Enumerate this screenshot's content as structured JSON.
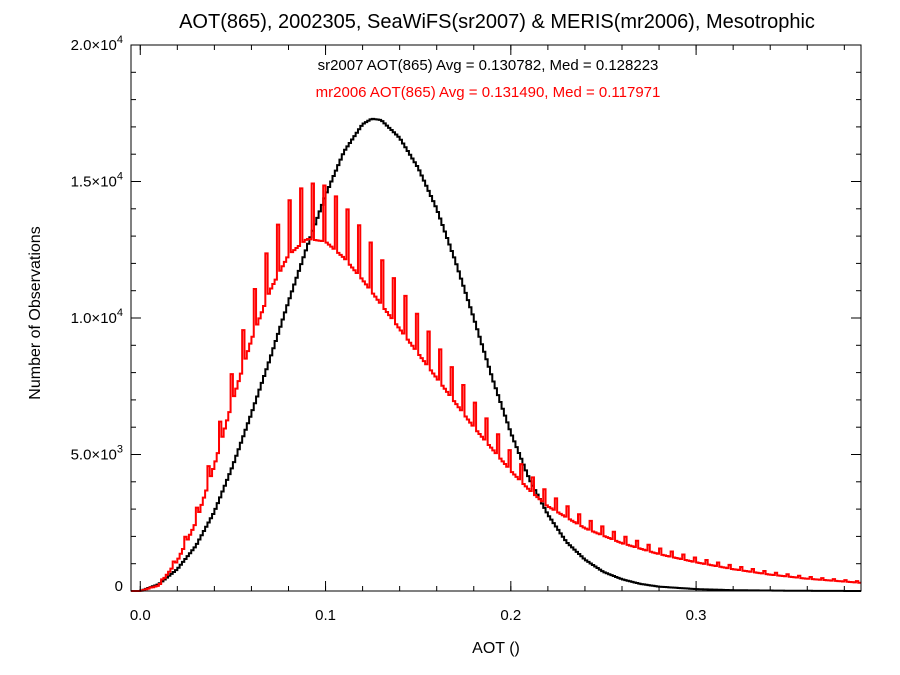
{
  "chart_data": {
    "type": "histogram",
    "title": "AOT(865), 2002305, SeaWiFS(sr2007) & MERIS(mr2006), Mesotrophic",
    "xlabel": "AOT ()",
    "ylabel": "Number of Observations",
    "xlim": [
      -0.005,
      0.389
    ],
    "ylim": [
      0,
      20000
    ],
    "x_ticks": [
      {
        "value": 0.0,
        "label": "0.0"
      },
      {
        "value": 0.1,
        "label": "0.1"
      },
      {
        "value": 0.2,
        "label": "0.2"
      },
      {
        "value": 0.3,
        "label": "0.3"
      }
    ],
    "y_ticks": [
      {
        "value": 0,
        "mantissa": "0",
        "exponent": ""
      },
      {
        "value": 5000,
        "mantissa": "5.0×10",
        "exponent": "3"
      },
      {
        "value": 10000,
        "mantissa": "1.0×10",
        "exponent": "4"
      },
      {
        "value": 15000,
        "mantissa": "1.5×10",
        "exponent": "4"
      },
      {
        "value": 20000,
        "mantissa": "2.0×10",
        "exponent": "4"
      }
    ],
    "annotations": [
      {
        "text": "sr2007 AOT(865) Avg = 0.130782, Med = 0.128223",
        "color": "#000000"
      },
      {
        "text": "mr2006 AOT(865) Avg = 0.131490, Med = 0.117971",
        "color": "#ff0000"
      }
    ],
    "series": [
      {
        "color": "#000000",
        "points": [
          [
            0.0,
            0
          ],
          [
            0.01,
            250
          ],
          [
            0.02,
            800
          ],
          [
            0.03,
            1650
          ],
          [
            0.04,
            2900
          ],
          [
            0.05,
            4600
          ],
          [
            0.06,
            6500
          ],
          [
            0.07,
            8500
          ],
          [
            0.08,
            10600
          ],
          [
            0.09,
            12600
          ],
          [
            0.1,
            14500
          ],
          [
            0.11,
            16100
          ],
          [
            0.12,
            17100
          ],
          [
            0.125,
            17300
          ],
          [
            0.13,
            17250
          ],
          [
            0.14,
            16600
          ],
          [
            0.15,
            15500
          ],
          [
            0.16,
            14000
          ],
          [
            0.17,
            12100
          ],
          [
            0.18,
            10000
          ],
          [
            0.19,
            7800
          ],
          [
            0.2,
            5800
          ],
          [
            0.21,
            4100
          ],
          [
            0.22,
            2800
          ],
          [
            0.23,
            1800
          ],
          [
            0.24,
            1150
          ],
          [
            0.25,
            700
          ],
          [
            0.26,
            430
          ],
          [
            0.27,
            260
          ],
          [
            0.28,
            160
          ],
          [
            0.3,
            70
          ],
          [
            0.32,
            30
          ],
          [
            0.35,
            10
          ],
          [
            0.389,
            0
          ]
        ]
      },
      {
        "color": "#ff0000",
        "points": [
          [
            0.0,
            0
          ],
          [
            0.01,
            200
          ],
          [
            0.02,
            1100
          ],
          [
            0.03,
            2500
          ],
          [
            0.04,
            4600
          ],
          [
            0.05,
            7000
          ],
          [
            0.06,
            9200
          ],
          [
            0.07,
            11000
          ],
          [
            0.08,
            12300
          ],
          [
            0.09,
            12900
          ],
          [
            0.1,
            12800
          ],
          [
            0.11,
            12200
          ],
          [
            0.12,
            11400
          ],
          [
            0.13,
            10500
          ],
          [
            0.14,
            9600
          ],
          [
            0.15,
            8700
          ],
          [
            0.16,
            7800
          ],
          [
            0.17,
            6900
          ],
          [
            0.18,
            6000
          ],
          [
            0.19,
            5200
          ],
          [
            0.2,
            4400
          ],
          [
            0.21,
            3700
          ],
          [
            0.22,
            3100
          ],
          [
            0.24,
            2300
          ],
          [
            0.26,
            1750
          ],
          [
            0.28,
            1350
          ],
          [
            0.3,
            1050
          ],
          [
            0.32,
            800
          ],
          [
            0.34,
            600
          ],
          [
            0.36,
            450
          ],
          [
            0.389,
            300
          ]
        ]
      }
    ]
  }
}
